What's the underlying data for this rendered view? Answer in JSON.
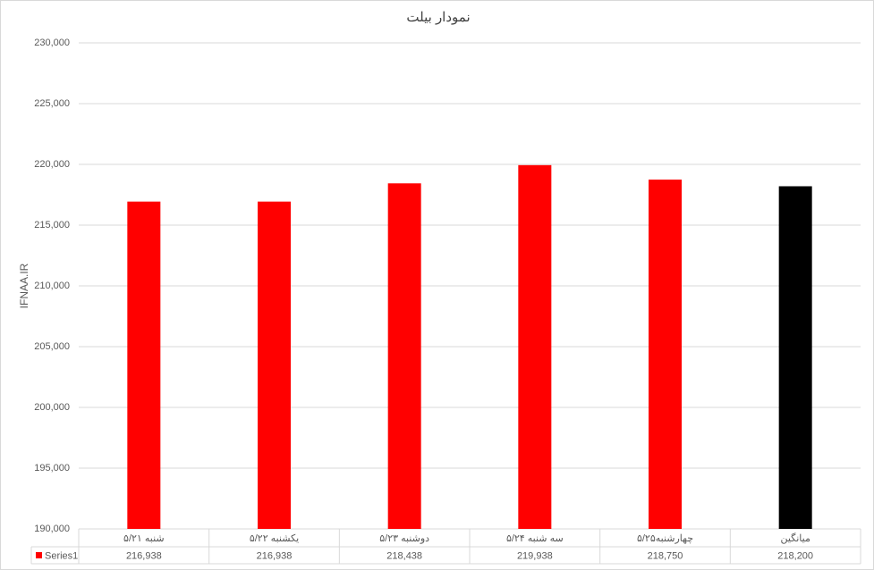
{
  "chart_data": {
    "type": "bar",
    "title": "نمودار بیلت",
    "y_label": "IFNAA.IR",
    "categories": [
      "شنبه ۵/۲۱",
      "یکشنبه ۵/۲۲",
      "دوشنبه ۵/۲۳",
      "سه شنبه ۵/۲۴",
      "چهارشنبه۵/۲۵",
      "میانگین"
    ],
    "series": [
      {
        "name": "Series1",
        "color": "#ff0000",
        "colors": [
          "#ff0000",
          "#ff0000",
          "#ff0000",
          "#ff0000",
          "#ff0000",
          "#000000"
        ],
        "values": [
          216938,
          216938,
          218438,
          219938,
          218750,
          218200
        ],
        "value_labels": [
          "216,938",
          "216,938",
          "218,438",
          "219,938",
          "218,750",
          "218,200"
        ]
      }
    ],
    "ylim": [
      190000,
      230000
    ],
    "yticks": [
      {
        "value": 190000,
        "label": "190,000"
      },
      {
        "value": 195000,
        "label": "195,000"
      },
      {
        "value": 200000,
        "label": "200,000"
      },
      {
        "value": 205000,
        "label": "205,000"
      },
      {
        "value": 210000,
        "label": "210,000"
      },
      {
        "value": 215000,
        "label": "215,000"
      },
      {
        "value": 220000,
        "label": "220,000"
      },
      {
        "value": 225000,
        "label": "225,000"
      },
      {
        "value": 230000,
        "label": "230,000"
      }
    ],
    "grid": true
  }
}
